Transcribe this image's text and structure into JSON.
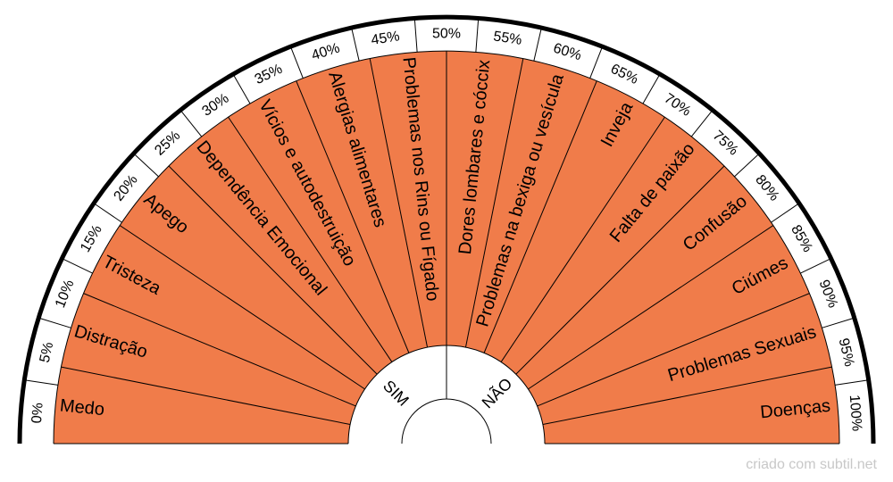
{
  "chart_data": {
    "type": "pie",
    "shape": "half-circle pendulum chart",
    "percent_labels": [
      "0%",
      "5%",
      "10%",
      "15%",
      "20%",
      "25%",
      "30%",
      "35%",
      "40%",
      "45%",
      "50%",
      "55%",
      "60%",
      "65%",
      "70%",
      "75%",
      "80%",
      "85%",
      "90%",
      "95%",
      "100%"
    ],
    "categories": [
      "Medo",
      "Distração",
      "Tristeza",
      "Apego",
      "Dependência Emocional",
      "Vícios e autodestruição",
      "Alergias alimentares",
      "Problemas nos Rins ou Fígado",
      "Dores lombares e cóccix",
      "Problemas na bexiga ou vesícula",
      "Inveja",
      "Falta de paixão",
      "Confusão",
      "Ciúmes",
      "Problemas Sexuais",
      "Doenças"
    ],
    "center_labels": [
      "SIM",
      "NÃO"
    ]
  },
  "colors": {
    "segment_fill": "#f07c4a",
    "line": "#000000",
    "background": "#ffffff"
  },
  "credit": "criado com subtil.net"
}
